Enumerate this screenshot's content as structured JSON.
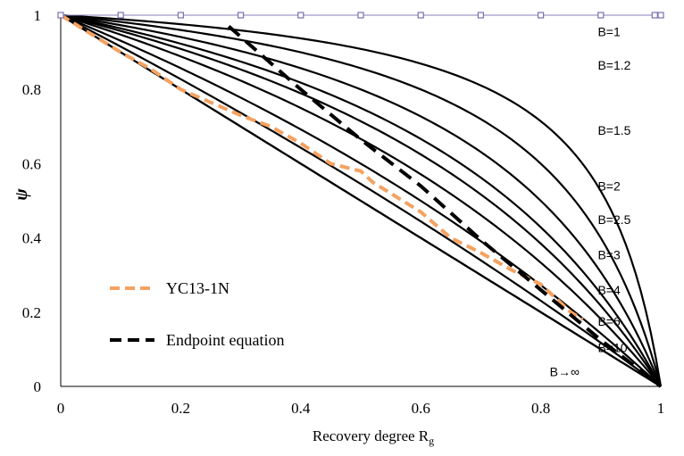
{
  "chart_data": {
    "type": "line",
    "xlabel": "Recovery degree R",
    "xlabel_sub": "g",
    "ylabel": "ψ",
    "xlim": [
      0,
      1
    ],
    "ylim": [
      0,
      1
    ],
    "x_ticks": [
      "0",
      "0.2",
      "0.4",
      "0.6",
      "0.8",
      "1"
    ],
    "y_ticks": [
      "0",
      "0.2",
      "0.4",
      "0.6",
      "0.8",
      "1"
    ],
    "grid": false,
    "curves": [
      {
        "label": "B=1",
        "B": 1,
        "label_x": 0.895,
        "label_y": 0.955
      },
      {
        "label": "B=1.2",
        "B": 1.2,
        "label_x": 0.895,
        "label_y": 0.865
      },
      {
        "label": "B=1.5",
        "B": 1.5,
        "label_x": 0.895,
        "label_y": 0.69
      },
      {
        "label": "B=2",
        "B": 2,
        "label_x": 0.895,
        "label_y": 0.54
      },
      {
        "label": "B=2.5",
        "B": 2.5,
        "label_x": 0.895,
        "label_y": 0.45
      },
      {
        "label": "B=3",
        "B": 3,
        "label_x": 0.895,
        "label_y": 0.355
      },
      {
        "label": "B=4",
        "B": 4,
        "label_x": 0.895,
        "label_y": 0.26
      },
      {
        "label": "B=6",
        "B": 6,
        "label_x": 0.895,
        "label_y": 0.175
      },
      {
        "label": "B=10",
        "B": 10,
        "label_x": 0.895,
        "label_y": 0.105
      },
      {
        "label": "B→∞",
        "B": null,
        "label_x": 0.815,
        "label_y": 0.04
      }
    ],
    "top_markers_x": [
      0,
      0.1,
      0.2,
      0.3,
      0.4,
      0.5,
      0.6,
      0.7,
      0.8,
      0.9,
      0.99,
      1.0
    ],
    "series": [
      {
        "name": "YC13-1N",
        "style": "dashed",
        "color": "#f4a261",
        "x": [
          0,
          0.05,
          0.1,
          0.15,
          0.2,
          0.25,
          0.3,
          0.35,
          0.4,
          0.45,
          0.5,
          0.52,
          0.55,
          0.6,
          0.65,
          0.7,
          0.75,
          0.8,
          0.85,
          0.87
        ],
        "y": [
          1.0,
          0.95,
          0.9,
          0.855,
          0.8,
          0.765,
          0.73,
          0.7,
          0.655,
          0.6,
          0.58,
          0.55,
          0.52,
          0.47,
          0.4,
          0.36,
          0.315,
          0.275,
          0.2,
          0.18
        ]
      },
      {
        "name": "Endpoint equation",
        "style": "dashed",
        "color": "#000000",
        "x": [
          0.28,
          0.4,
          0.5,
          0.6,
          0.7,
          0.8,
          0.9,
          1.0
        ],
        "y": [
          0.97,
          0.8,
          0.665,
          0.54,
          0.395,
          0.26,
          0.125,
          0.0
        ]
      }
    ],
    "legend_placement": "lower-left"
  }
}
